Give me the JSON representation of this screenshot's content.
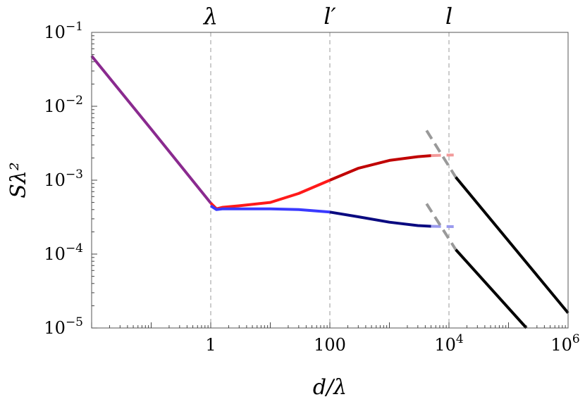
{
  "chart_data": {
    "type": "line",
    "title": "",
    "xlabel": "d/λ",
    "ylabel": "Sλ²",
    "x_scale": "log",
    "y_scale": "log",
    "xlim": [
      0.01,
      1000000
    ],
    "ylim": [
      1e-05,
      0.1
    ],
    "grid": false,
    "legend": "none",
    "x_ticks": [
      {
        "value": 1,
        "label": "1"
      },
      {
        "value": 100,
        "label": "100"
      },
      {
        "value": 10000,
        "base": "10",
        "exp": "4"
      },
      {
        "value": 1000000,
        "base": "10",
        "exp": "6"
      }
    ],
    "y_ticks": [
      {
        "value": 0.1,
        "base": "10",
        "exp": "−1"
      },
      {
        "value": 0.01,
        "base": "10",
        "exp": "−2"
      },
      {
        "value": 0.001,
        "base": "10",
        "exp": "−3"
      },
      {
        "value": 0.0001,
        "base": "10",
        "exp": "−4"
      },
      {
        "value": 1e-05,
        "base": "10",
        "exp": "−5"
      }
    ],
    "vlines": [
      {
        "x": 1,
        "label": "λ"
      },
      {
        "x": 100,
        "label": "l′"
      },
      {
        "x": 10000,
        "label": "l"
      }
    ],
    "series": [
      {
        "color": "#8a2a8f",
        "width": 4,
        "points": [
          [
            0.01,
            0.048
          ],
          [
            0.1,
            0.0049
          ],
          [
            1,
            0.00049
          ]
        ]
      },
      {
        "color": "#ff1a1a",
        "width": 4,
        "points": [
          [
            1,
            0.00049
          ],
          [
            1.25,
            0.00041
          ],
          [
            1.6,
            0.00043
          ],
          [
            3,
            0.00045
          ],
          [
            10,
            0.0005
          ],
          [
            30,
            0.00066
          ],
          [
            100,
            0.001
          ]
        ]
      },
      {
        "color": "#c00000",
        "width": 4,
        "points": [
          [
            100,
            0.001
          ],
          [
            300,
            0.00145
          ],
          [
            1000,
            0.00185
          ],
          [
            3000,
            0.00208
          ],
          [
            5000,
            0.00215
          ]
        ]
      },
      {
        "color": "#f29a9a",
        "width": 4,
        "dashed": true,
        "points": [
          [
            5000,
            0.00215
          ],
          [
            8000,
            0.00218
          ],
          [
            12000,
            0.00219
          ]
        ]
      },
      {
        "color": "#3a3aff",
        "width": 4,
        "points": [
          [
            1,
            0.00045
          ],
          [
            1.25,
            0.0004
          ],
          [
            1.6,
            0.00041
          ],
          [
            3,
            0.00041
          ],
          [
            10,
            0.00041
          ],
          [
            30,
            0.0004
          ],
          [
            100,
            0.00037
          ]
        ]
      },
      {
        "color": "#0a0a80",
        "width": 4,
        "points": [
          [
            100,
            0.00037
          ],
          [
            300,
            0.00032
          ],
          [
            1000,
            0.00027
          ],
          [
            3000,
            0.000243
          ],
          [
            5000,
            0.000238
          ]
        ]
      },
      {
        "color": "#9a9aee",
        "width": 4,
        "dashed": true,
        "points": [
          [
            5000,
            0.000238
          ],
          [
            8000,
            0.000236
          ],
          [
            12000,
            0.000235
          ]
        ]
      },
      {
        "color": "#999999",
        "width": 4,
        "dashed": true,
        "points": [
          [
            4200,
            0.0047
          ],
          [
            13000,
            0.0011
          ]
        ]
      },
      {
        "color": "#999999",
        "width": 4,
        "dashed": true,
        "points": [
          [
            4200,
            0.00048
          ],
          [
            13000,
            0.000115
          ]
        ]
      },
      {
        "color": "#000000",
        "width": 4,
        "points": [
          [
            13000,
            0.0011
          ],
          [
            1000000,
            1.6e-05
          ]
        ]
      },
      {
        "color": "#000000",
        "width": 4,
        "points": [
          [
            13000,
            0.000115
          ],
          [
            200000,
            1e-05
          ]
        ]
      }
    ]
  }
}
